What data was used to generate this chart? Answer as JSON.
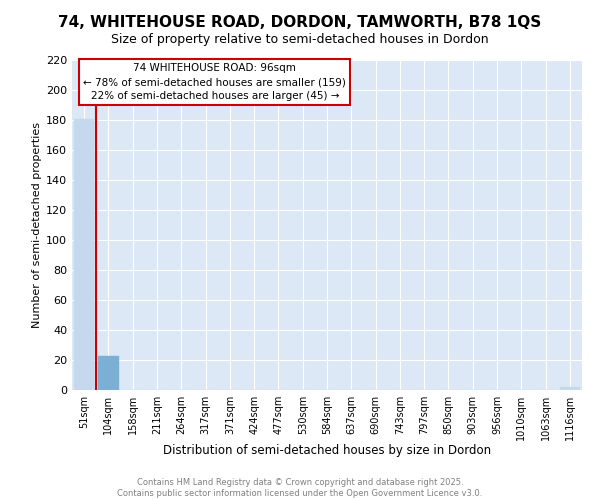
{
  "title": "74, WHITEHOUSE ROAD, DORDON, TAMWORTH, B78 1QS",
  "subtitle": "Size of property relative to semi-detached houses in Dordon",
  "xlabel": "Distribution of semi-detached houses by size in Dordon",
  "ylabel": "Number of semi-detached properties",
  "bar_labels": [
    "51sqm",
    "104sqm",
    "158sqm",
    "211sqm",
    "264sqm",
    "317sqm",
    "371sqm",
    "424sqm",
    "477sqm",
    "530sqm",
    "584sqm",
    "637sqm",
    "690sqm",
    "743sqm",
    "797sqm",
    "850sqm",
    "903sqm",
    "956sqm",
    "1010sqm",
    "1063sqm",
    "1116sqm"
  ],
  "bar_values": [
    181,
    23,
    0,
    0,
    0,
    0,
    0,
    0,
    0,
    0,
    0,
    0,
    0,
    0,
    0,
    0,
    0,
    0,
    0,
    0,
    2
  ],
  "bar_color": "#c5d8ee",
  "highlight_bar_index": 1,
  "highlight_bar_color": "#7bafd4",
  "vline_color": "#cc0000",
  "annotation_title": "74 WHITEHOUSE ROAD: 96sqm",
  "annotation_line1": "← 78% of semi-detached houses are smaller (159)",
  "annotation_line2": "22% of semi-detached houses are larger (45) →",
  "annotation_box_facecolor": "#ffffff",
  "annotation_box_edgecolor": "#cc0000",
  "ylim": [
    0,
    220
  ],
  "yticks": [
    0,
    20,
    40,
    60,
    80,
    100,
    120,
    140,
    160,
    180,
    200,
    220
  ],
  "plot_bg": "#dce8f5",
  "fig_bg": "#ffffff",
  "grid_color": "#ffffff",
  "footer_line1": "Contains HM Land Registry data © Crown copyright and database right 2025.",
  "footer_line2": "Contains public sector information licensed under the Open Government Licence v3.0."
}
